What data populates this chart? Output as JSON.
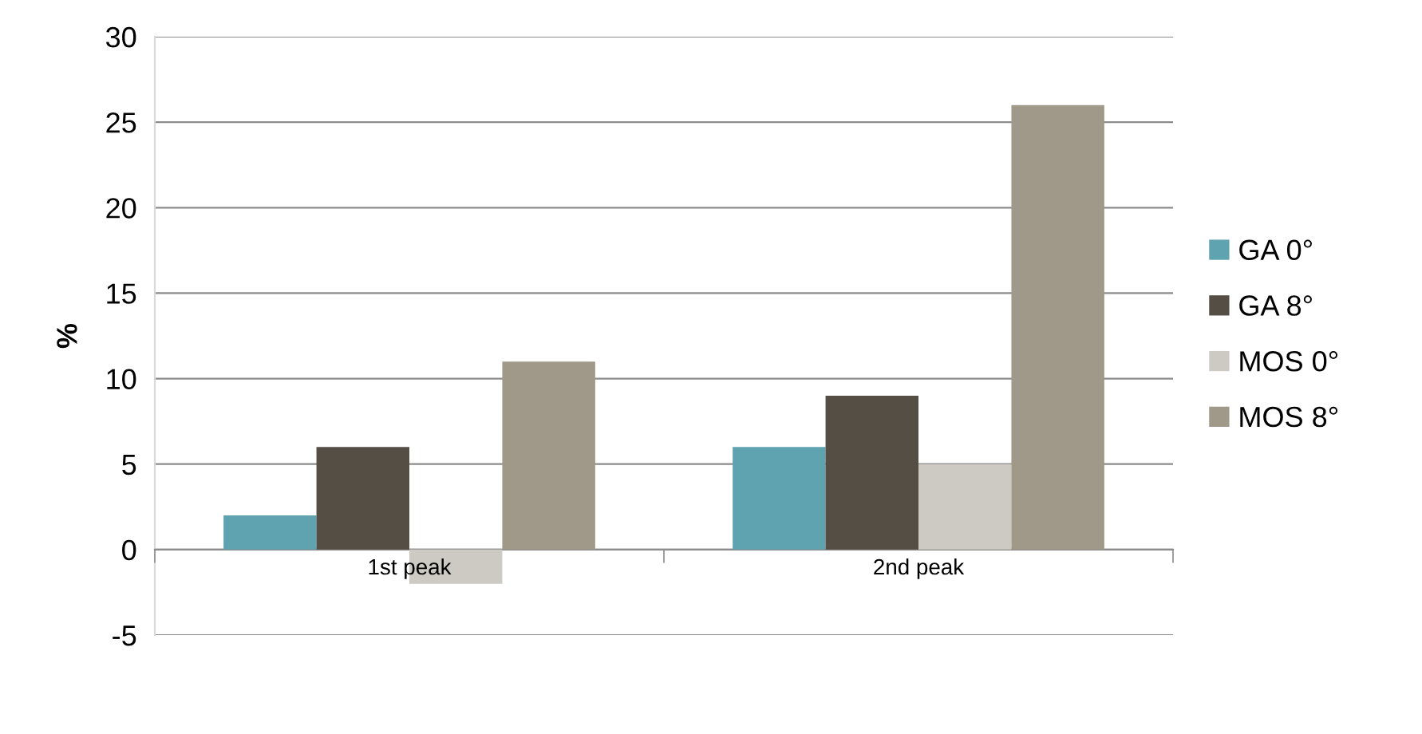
{
  "chart_data": {
    "type": "bar",
    "ylabel": "%",
    "categories": [
      "1st peak",
      "2nd peak"
    ],
    "series": [
      {
        "name": "GA 0°",
        "color": "#5fa3b0",
        "values": [
          2,
          6
        ]
      },
      {
        "name": "GA 8°",
        "color": "#554e44",
        "values": [
          6,
          9
        ]
      },
      {
        "name": "MOS 0°",
        "color": "#cccac3",
        "values": [
          -2,
          5
        ]
      },
      {
        "name": "MOS 8°",
        "color": "#a09888",
        "values": [
          11,
          26
        ]
      }
    ],
    "ylim": [
      -5,
      30
    ],
    "yticks": [
      -5,
      0,
      5,
      10,
      15,
      20,
      25,
      30
    ],
    "grid": "y",
    "legend": "right"
  }
}
